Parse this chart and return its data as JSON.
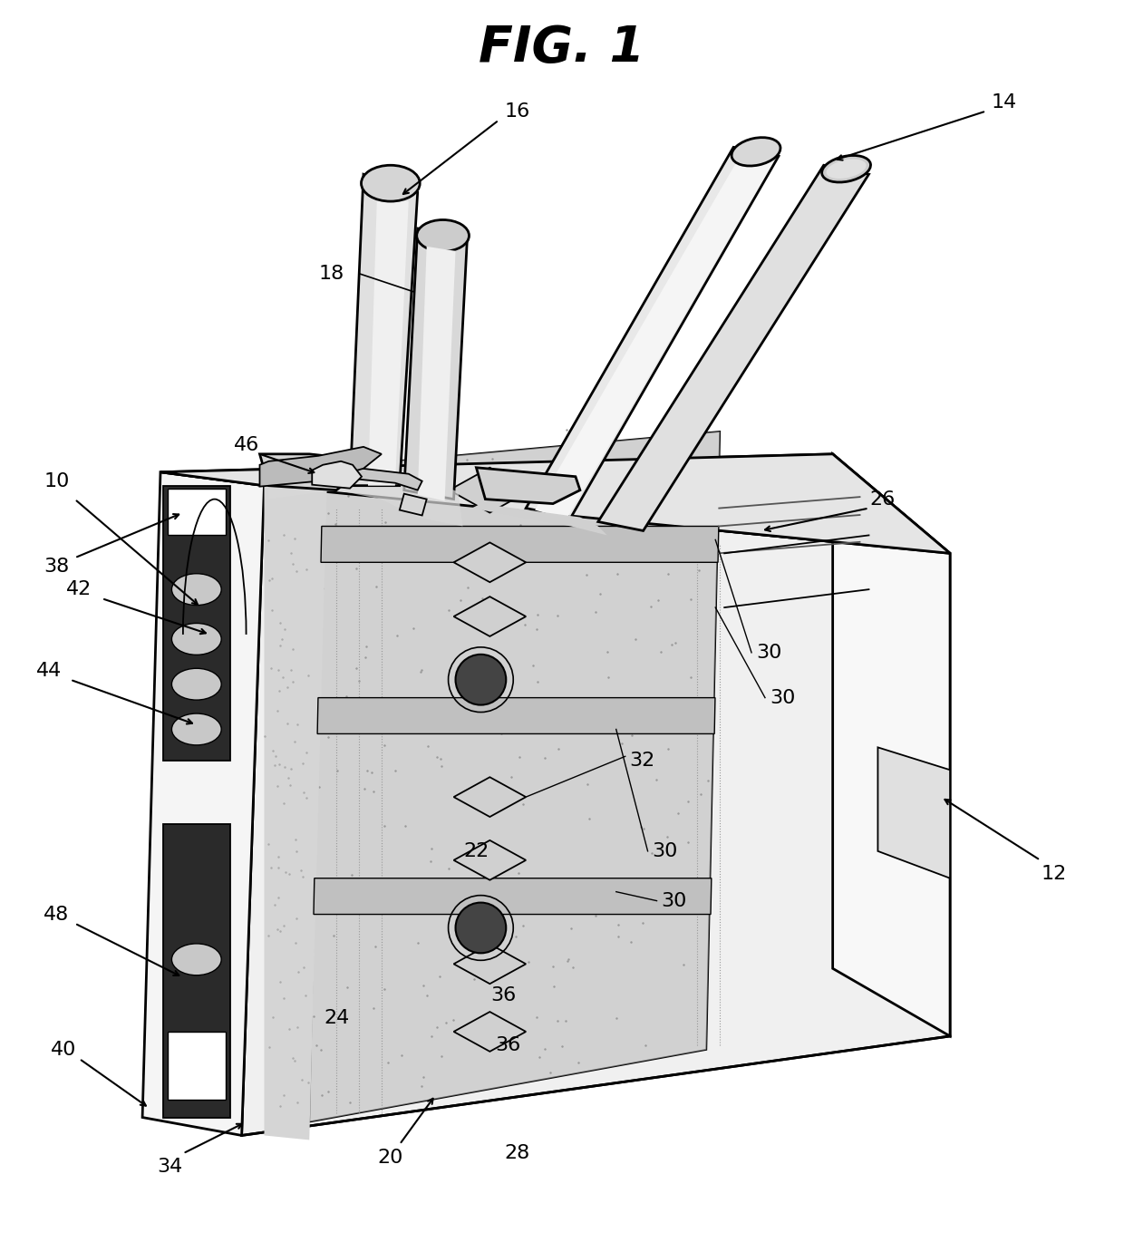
{
  "title": "FIG. 1",
  "title_fontsize": 40,
  "title_fontstyle": "italic",
  "title_fontweight": "bold",
  "background_color": "#ffffff",
  "line_color": "#000000",
  "dark_gray": "#3a3a3a",
  "medium_gray": "#888888",
  "light_gray": "#cccccc",
  "very_light_gray": "#e8e8e8",
  "stipple_color": "#b0b0b0"
}
